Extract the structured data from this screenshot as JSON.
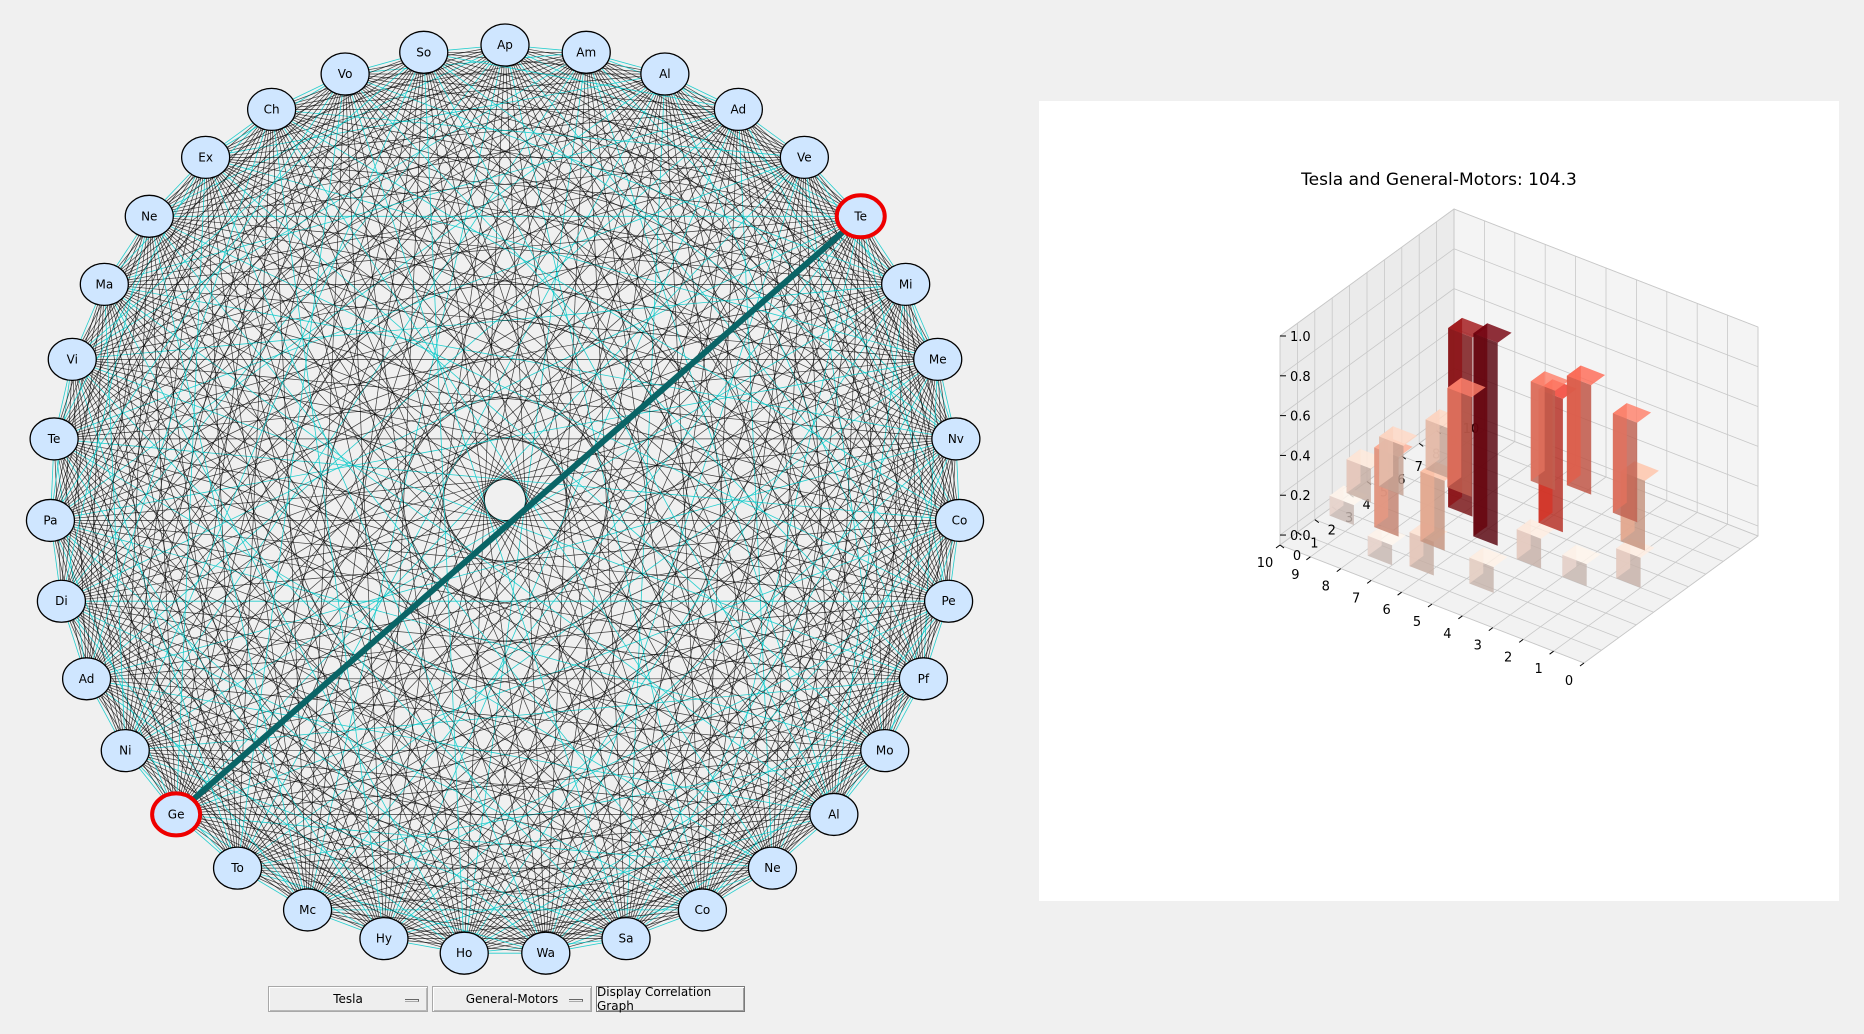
{
  "graph": {
    "nodes": [
      "Ap",
      "Am",
      "Al",
      "Ad",
      "Ve",
      "Te",
      "Mi",
      "Me",
      "Nv",
      "Co",
      "Pe",
      "Pf",
      "Mo",
      "Al",
      "Ne",
      "Co",
      "Sa",
      "Wa",
      "Ho",
      "Hy",
      "Mc",
      "To",
      "Ge",
      "Ni",
      "Ad",
      "Di",
      "Pa",
      "Te",
      "Vi",
      "Ma",
      "Ne",
      "Ex",
      "Ch",
      "Vo",
      "So"
    ],
    "selected_indices": [
      5,
      22
    ],
    "colors": {
      "node_fill": "#cfe6ff",
      "edge_black": "#000000",
      "edge_cyan": "#00c8c8",
      "highlight_edge": "#0a6466",
      "highlight_ring": "#ee0000"
    }
  },
  "plot": {
    "title": "Tesla and General-Motors: 104.3"
  },
  "chart_data": {
    "type": "bar3d",
    "title": "Tesla and General-Motors: 104.3",
    "x_ticks": [
      "0",
      "1",
      "2",
      "3",
      "4",
      "5",
      "6",
      "7",
      "8",
      "9",
      "10"
    ],
    "y_ticks": [
      "0",
      "1",
      "2",
      "3",
      "4",
      "5",
      "6",
      "7",
      "8",
      "9",
      "10"
    ],
    "z_ticks": [
      "0.0",
      "0.2",
      "0.4",
      "0.6",
      "0.8",
      "1.0"
    ],
    "xlim": [
      0,
      10
    ],
    "ylim": [
      0,
      10
    ],
    "zlim": [
      -0.05,
      1.0
    ],
    "bars": [
      {
        "x": 5.3,
        "y": 4.3,
        "z": 0.97
      },
      {
        "x": 6.7,
        "y": 5.3,
        "z": 0.85
      },
      {
        "x": 4.3,
        "y": 6.3,
        "z": 0.62
      },
      {
        "x": 7.3,
        "y": 6.3,
        "z": 0.45
      },
      {
        "x": 2.0,
        "y": 7.0,
        "z": 0.3
      },
      {
        "x": 3.0,
        "y": 8.3,
        "z": 0.45
      },
      {
        "x": 4.8,
        "y": 8.8,
        "z": 0.5
      },
      {
        "x": 5.7,
        "y": 8.3,
        "z": 0.45
      },
      {
        "x": 6.3,
        "y": 3.0,
        "z": 0.3
      },
      {
        "x": 8.3,
        "y": 6.8,
        "z": 0.2
      },
      {
        "x": 8.8,
        "y": 5.0,
        "z": 0.2
      },
      {
        "x": 7.7,
        "y": 2.8,
        "z": 0.35
      },
      {
        "x": 2.2,
        "y": 4.0,
        "z": 0.06
      },
      {
        "x": 1.0,
        "y": 5.0,
        "z": 0.1
      },
      {
        "x": 3.7,
        "y": 4.0,
        "z": 0.1
      },
      {
        "x": 4.0,
        "y": 1.8,
        "z": 0.08
      },
      {
        "x": 5.8,
        "y": 1.5,
        "z": 0.12
      },
      {
        "x": 7.0,
        "y": 1.2,
        "z": 0.05
      },
      {
        "x": 9.3,
        "y": 4.0,
        "z": 0.12
      },
      {
        "x": 9.0,
        "y": 2.5,
        "z": 0.05
      }
    ],
    "colormap": "Reds"
  },
  "controls": {
    "company1": "Tesla",
    "company2": "General-Motors",
    "display_button": "Display Correlation Graph"
  }
}
